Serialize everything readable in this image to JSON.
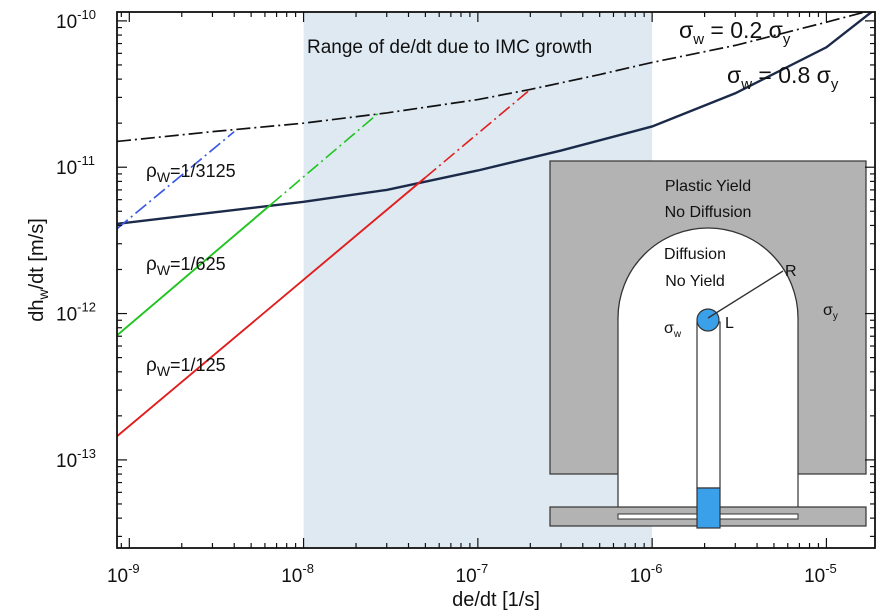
{
  "chart_data": {
    "type": "line",
    "title": "",
    "xlabel": "de/dt [1/s]",
    "ylabel": "dh_w/dt [m/s]",
    "xscale": "log",
    "yscale": "log",
    "xlim": [
      8.5e-10,
      1.9e-05
    ],
    "ylim": [
      2.5e-14,
      1.15e-10
    ],
    "x_ticks": [
      {
        "value": 1e-09,
        "base": "10",
        "exp": "-9"
      },
      {
        "value": 1e-08,
        "base": "10",
        "exp": "-8"
      },
      {
        "value": 1e-07,
        "base": "10",
        "exp": "-7"
      },
      {
        "value": 1e-06,
        "base": "10",
        "exp": "-6"
      },
      {
        "value": 1e-05,
        "base": "10",
        "exp": "-5"
      }
    ],
    "y_ticks": [
      {
        "value": 1e-13,
        "base": "10",
        "exp": "-13"
      },
      {
        "value": 1e-12,
        "base": "10",
        "exp": "-12"
      },
      {
        "value": 1e-11,
        "base": "10",
        "exp": "-11"
      },
      {
        "value": 1e-10,
        "base": "10",
        "exp": "-10"
      }
    ],
    "grid": false,
    "shaded_region": {
      "x": [
        1e-08,
        1e-06
      ],
      "label": "Range of de/dt due to IMC growth",
      "color": "#dfe9f2"
    },
    "series": [
      {
        "name_parts": {
          "sym": "σ",
          "sub": "w",
          "mid": " = 0.2 ",
          "sym2": "σ",
          "sub2": "y"
        },
        "style": "dashdot",
        "color": "#111111",
        "x": [
          8.5e-10,
          3e-09,
          1e-08,
          3e-08,
          1e-07,
          2e-07,
          5e-07,
          1e-06,
          3e-06,
          1e-05,
          1.9e-05
        ],
        "y": [
          1.5e-11,
          1.75e-11,
          2e-11,
          2.35e-11,
          2.9e-11,
          3.4e-11,
          4.3e-11,
          5.2e-11,
          6.8e-11,
          9.8e-11,
          1.2e-10
        ]
      },
      {
        "name_parts": {
          "sym": "σ",
          "sub": "w",
          "mid": " = 0.8 ",
          "sym2": "σ",
          "sub2": "y"
        },
        "style": "solid",
        "color": "#1c2a4a",
        "x": [
          8.5e-10,
          3e-09,
          1e-08,
          3e-08,
          1e-07,
          3e-07,
          1e-06,
          3e-06,
          1e-05,
          1.9e-05
        ],
        "y": [
          4.1e-12,
          4.9e-12,
          5.8e-12,
          7e-12,
          9.5e-12,
          1.3e-11,
          1.9e-11,
          3.2e-11,
          6.6e-11,
          1.2e-10
        ]
      },
      {
        "name_parts": {
          "sym": "ρ",
          "sub": "W",
          "mid": "=1/3125"
        },
        "style": "dashdot",
        "color": "#3a5ae6",
        "x": [
          8.5e-10,
          4e-09
        ],
        "y": [
          3.8e-12,
          1.75e-11
        ]
      },
      {
        "name_parts": {
          "sym": "ρ",
          "sub": "W",
          "mid": "=1/625"
        },
        "style": "solid-then-dashdot",
        "dash_from": 6.5e-09,
        "color": "#1fc41f",
        "x": [
          8.5e-10,
          2.7e-08
        ],
        "y": [
          7.1e-13,
          2.35e-11
        ]
      },
      {
        "name_parts": {
          "sym": "ρ",
          "sub": "W",
          "mid": "=1/125"
        },
        "style": "solid-then-dashdot",
        "dash_from": 5e-08,
        "color": "#e11e1e",
        "x": [
          8.5e-10,
          2e-07
        ],
        "y": [
          1.45e-13,
          3.4e-11
        ]
      }
    ],
    "inset": {
      "plastic_label_1": "Plastic Yield",
      "plastic_label_2": "No Diffusion",
      "diffusion_label_1": "Diffusion",
      "diffusion_label_2": "No Yield",
      "radius_label": "R",
      "length_label": "L",
      "sigma_w_sym": "σ",
      "sigma_w_sub": "w",
      "sigma_y_sym": "σ",
      "sigma_y_sub": "y",
      "gray": "#b3b3b3",
      "blue": "#3aa0ea"
    }
  }
}
